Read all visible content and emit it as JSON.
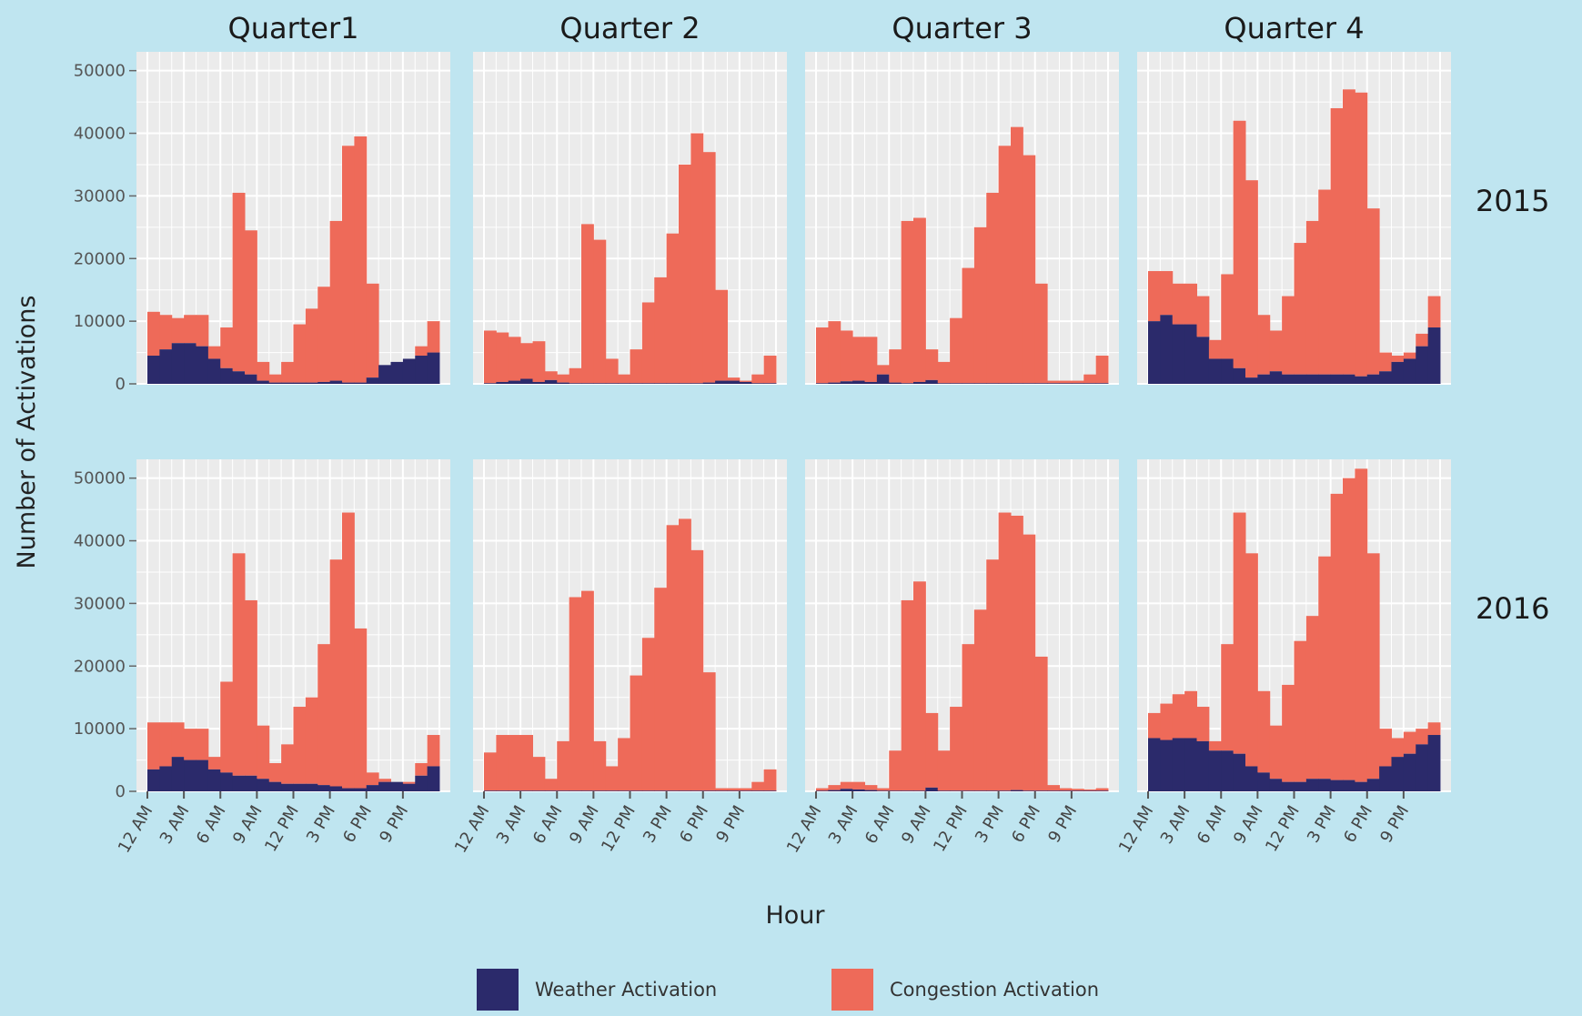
{
  "chart_data": {
    "type": "bar",
    "stacked": true,
    "xlabel": "Hour",
    "ylabel": "Number of Activations",
    "ylim": [
      0,
      53000
    ],
    "yticks": [
      0,
      10000,
      20000,
      30000,
      40000,
      50000
    ],
    "xticks": [
      "12 AM",
      "3 AM",
      "6 AM",
      "9 AM",
      "12 PM",
      "3 PM",
      "6 PM",
      "9 PM"
    ],
    "xtick_hours": [
      0,
      3,
      6,
      9,
      12,
      15,
      18,
      21
    ],
    "grid": true,
    "legend_position": "bottom",
    "columns": [
      "Quarter1",
      "Quarter 2",
      "Quarter 3",
      "Quarter 4"
    ],
    "rows": [
      "2015",
      "2016"
    ],
    "colors": {
      "weather": "#2b2a6b",
      "congestion": "#ee6a59",
      "panel_bg": "#ebebeb",
      "grid": "#ffffff",
      "background": "#bfe5f0"
    },
    "series": [
      {
        "key": "weather",
        "name": "Weather Activation"
      },
      {
        "key": "congestion",
        "name": "Congestion Activation"
      }
    ],
    "panels": [
      {
        "column": "Quarter1",
        "row": "2015",
        "weather": [
          4500,
          5500,
          6500,
          6500,
          6000,
          4000,
          2500,
          2000,
          1500,
          500,
          200,
          200,
          200,
          200,
          300,
          500,
          200,
          200,
          1000,
          3000,
          3500,
          4000,
          4500,
          5000
        ],
        "total": [
          11500,
          11000,
          10500,
          11000,
          11000,
          6000,
          9000,
          30500,
          24500,
          3500,
          1500,
          3500,
          9500,
          12000,
          15500,
          26000,
          38000,
          39500,
          16000,
          1500,
          3500,
          4000,
          6000,
          10000
        ]
      },
      {
        "column": "Quarter 2",
        "row": "2015",
        "weather": [
          100,
          300,
          500,
          800,
          300,
          600,
          200,
          100,
          100,
          100,
          100,
          100,
          100,
          100,
          100,
          100,
          100,
          100,
          200,
          500,
          500,
          300,
          100,
          100
        ],
        "total": [
          8500,
          8200,
          7500,
          6500,
          6800,
          2000,
          1500,
          2500,
          25500,
          23000,
          4000,
          1500,
          5500,
          13000,
          17000,
          24000,
          35000,
          40000,
          37000,
          15000,
          1000,
          500,
          1500,
          4500
        ]
      },
      {
        "column": "Quarter 3",
        "row": "2015",
        "weather": [
          100,
          200,
          400,
          500,
          300,
          1500,
          200,
          100,
          300,
          600,
          100,
          100,
          100,
          100,
          100,
          100,
          100,
          100,
          100,
          100,
          100,
          100,
          100,
          100
        ],
        "total": [
          9000,
          10000,
          8500,
          7500,
          7500,
          3000,
          5500,
          26000,
          26500,
          5500,
          3500,
          10500,
          18500,
          25000,
          30500,
          38000,
          41000,
          36500,
          16000,
          500,
          500,
          500,
          1500,
          4500
        ]
      },
      {
        "column": "Quarter 4",
        "row": "2015",
        "weather": [
          10000,
          11000,
          9500,
          9500,
          7500,
          4000,
          4000,
          2500,
          1000,
          1500,
          2000,
          1500,
          1500,
          1500,
          1500,
          1500,
          1500,
          1200,
          1500,
          2000,
          3500,
          4000,
          6000,
          9000
        ],
        "total": [
          18000,
          18000,
          16000,
          16000,
          14000,
          7000,
          17500,
          42000,
          32500,
          11000,
          8500,
          14000,
          22500,
          26000,
          31000,
          44000,
          47000,
          46500,
          28000,
          5000,
          4500,
          5000,
          8000,
          14000
        ]
      },
      {
        "column": "Quarter1",
        "row": "2016",
        "weather": [
          3500,
          4000,
          5500,
          5000,
          5000,
          3500,
          3000,
          2500,
          2500,
          2000,
          1500,
          1200,
          1200,
          1200,
          1000,
          800,
          500,
          500,
          1000,
          1500,
          1500,
          1200,
          2500,
          4000
        ],
        "total": [
          11000,
          11000,
          11000,
          10000,
          10000,
          5500,
          17500,
          38000,
          30500,
          10500,
          4500,
          7500,
          13500,
          15000,
          23500,
          37000,
          44500,
          26000,
          3000,
          2000,
          1500,
          1500,
          4500,
          9000
        ]
      },
      {
        "column": "Quarter 2",
        "row": "2016",
        "weather": [
          100,
          100,
          100,
          100,
          100,
          100,
          100,
          100,
          100,
          100,
          100,
          100,
          100,
          100,
          100,
          100,
          100,
          100,
          100,
          100,
          100,
          100,
          100,
          100
        ],
        "total": [
          6200,
          9000,
          9000,
          9000,
          5500,
          2000,
          8000,
          31000,
          32000,
          8000,
          4000,
          8500,
          18500,
          24500,
          32500,
          42500,
          43500,
          38500,
          19000,
          500,
          500,
          500,
          1500,
          3500
        ]
      },
      {
        "column": "Quarter 3",
        "row": "2016",
        "weather": [
          100,
          200,
          400,
          300,
          200,
          100,
          100,
          100,
          100,
          600,
          100,
          100,
          100,
          100,
          100,
          100,
          200,
          100,
          100,
          100,
          100,
          100,
          100,
          100
        ],
        "total": [
          500,
          1000,
          1500,
          1500,
          1000,
          500,
          6500,
          30500,
          33500,
          12500,
          6500,
          13500,
          23500,
          29000,
          37000,
          44500,
          44000,
          41000,
          21500,
          1000,
          500,
          400,
          300,
          500
        ]
      },
      {
        "column": "Quarter 4",
        "row": "2016",
        "weather": [
          8500,
          8200,
          8500,
          8500,
          8000,
          6500,
          6500,
          6000,
          4000,
          3000,
          2000,
          1500,
          1500,
          2000,
          2000,
          1800,
          1800,
          1500,
          2000,
          4000,
          5500,
          6000,
          7500,
          9000
        ],
        "total": [
          12500,
          14000,
          15500,
          16000,
          13500,
          8000,
          23500,
          44500,
          38000,
          16000,
          10500,
          17000,
          24000,
          28000,
          37500,
          47500,
          50000,
          51500,
          38000,
          10000,
          8500,
          9500,
          10000,
          11000
        ]
      }
    ]
  }
}
